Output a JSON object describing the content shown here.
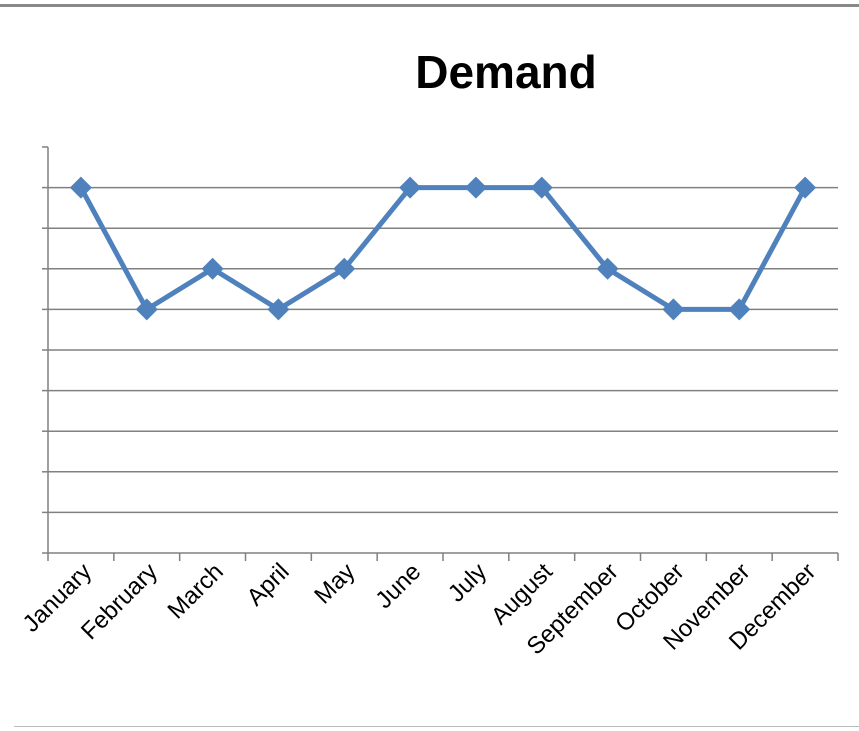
{
  "chart_data": {
    "type": "line",
    "title": "Demand",
    "xlabel": "",
    "ylabel": "",
    "categories": [
      "January",
      "February",
      "March",
      "April",
      "May",
      "June",
      "July",
      "August",
      "September",
      "October",
      "November",
      "December"
    ],
    "series": [
      {
        "values": [
          9,
          6,
          7,
          6,
          7,
          9,
          9,
          9,
          7,
          6,
          6,
          9
        ]
      }
    ],
    "ylim": [
      0,
      10
    ],
    "y_ticks_shown": false,
    "grid": true,
    "legend": "none",
    "colors": {
      "line": "#4F81BD",
      "grid": "#808080",
      "axis": "#808080"
    }
  }
}
